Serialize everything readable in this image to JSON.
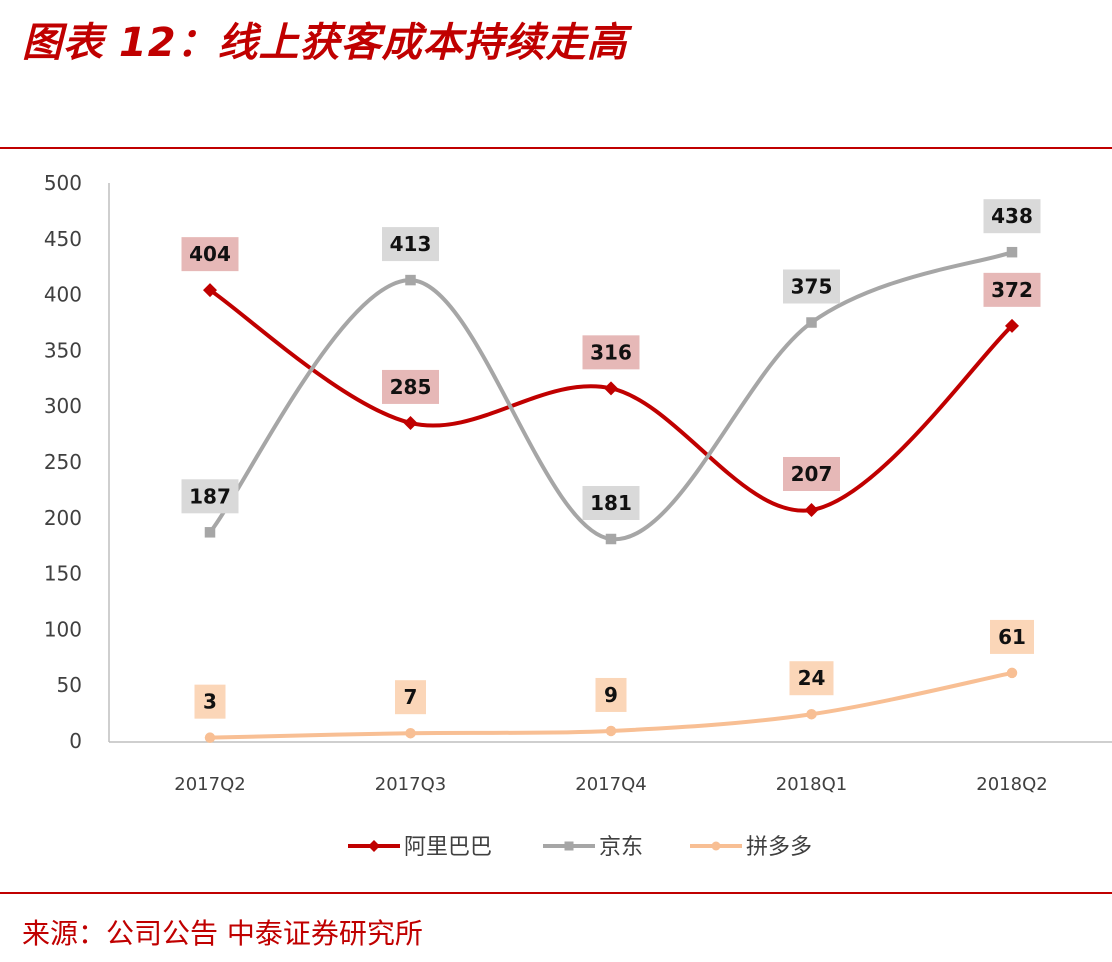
{
  "title": "图表 12：线上获客成本持续走高",
  "source": "来源：公司公告  中泰证券研究所",
  "chart_data": {
    "type": "line",
    "title": "",
    "xlabel": "",
    "ylabel": "",
    "categories": [
      "2017Q2",
      "2017Q3",
      "2017Q4",
      "2018Q1",
      "2018Q2"
    ],
    "ylim": [
      0,
      500
    ],
    "yticks": [
      0,
      50,
      100,
      150,
      200,
      250,
      300,
      350,
      400,
      450,
      500
    ],
    "grid": false,
    "smooth": true,
    "legend_position": "bottom",
    "series": [
      {
        "name": "阿里巴巴",
        "values": [
          404,
          285,
          316,
          207,
          372
        ],
        "color": "#C00000",
        "label_bg": "#E6B8B7",
        "marker": "diamond"
      },
      {
        "name": "京东",
        "values": [
          187,
          413,
          181,
          375,
          438
        ],
        "color": "#A6A6A6",
        "label_bg": "#D9D9D9",
        "marker": "square"
      },
      {
        "name": "拼多多",
        "values": [
          3,
          7,
          9,
          24,
          61
        ],
        "color": "#F8BF94",
        "label_bg": "#FBD6B8",
        "marker": "circle"
      }
    ]
  }
}
